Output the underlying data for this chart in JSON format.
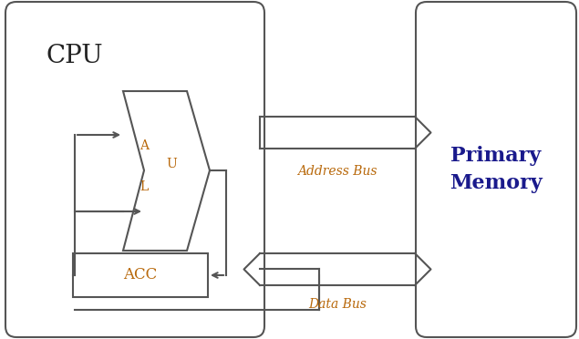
{
  "bg_color": "#ffffff",
  "line_color": "#555555",
  "line_width": 1.5,
  "text_color": "#222222",
  "orange_color": "#b8680a",
  "blue_color": "#1a1a8c",
  "cpu_label": "CPU",
  "mem_label": "Primary\nMemory",
  "address_bus_label": "Address Bus",
  "data_bus_label": "Data Bus",
  "acc_label": "ACC",
  "alu_a": "A",
  "alu_u": "U",
  "alu_l": "L"
}
